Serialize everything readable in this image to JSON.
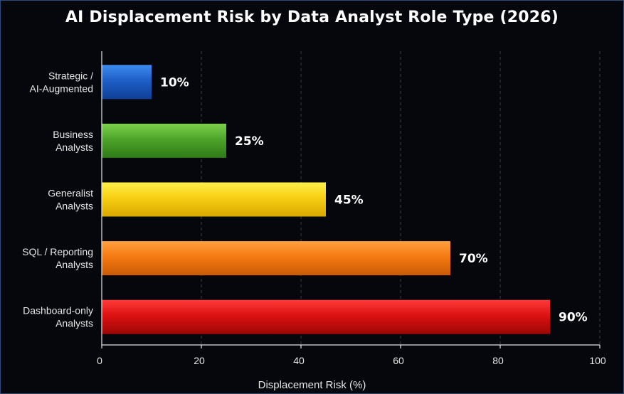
{
  "chart_data": {
    "type": "bar",
    "orientation": "horizontal",
    "title": "AI Displacement Risk by Data Analyst Role Type (2026)",
    "xlabel": "Displacement Risk (%)",
    "ylabel": "",
    "xlim": [
      0,
      100
    ],
    "ticks": [
      0,
      20,
      40,
      60,
      80,
      100
    ],
    "grid": "vertical dashed",
    "categories": [
      [
        "Strategic /",
        "AI-Augmented"
      ],
      [
        "Business",
        "Analysts"
      ],
      [
        "Generalist",
        "Analysts"
      ],
      [
        "SQL / Reporting",
        "Analysts"
      ],
      [
        "Dashboard-only",
        "Analysts"
      ]
    ],
    "values": [
      10,
      25,
      45,
      70,
      90
    ],
    "data_labels": [
      "10%",
      "25%",
      "45%",
      "70%",
      "90%"
    ],
    "colors": [
      [
        "#3d8cf0",
        "#1f5fc8",
        "#0e3f94"
      ],
      [
        "#7cd14a",
        "#4ea52a",
        "#2f7a18"
      ],
      [
        "#fff04a",
        "#f7cf14",
        "#d9a800"
      ],
      [
        "#ffa040",
        "#f57a12",
        "#c95a06"
      ],
      [
        "#ff3a3a",
        "#dd1212",
        "#9c0606"
      ]
    ]
  }
}
